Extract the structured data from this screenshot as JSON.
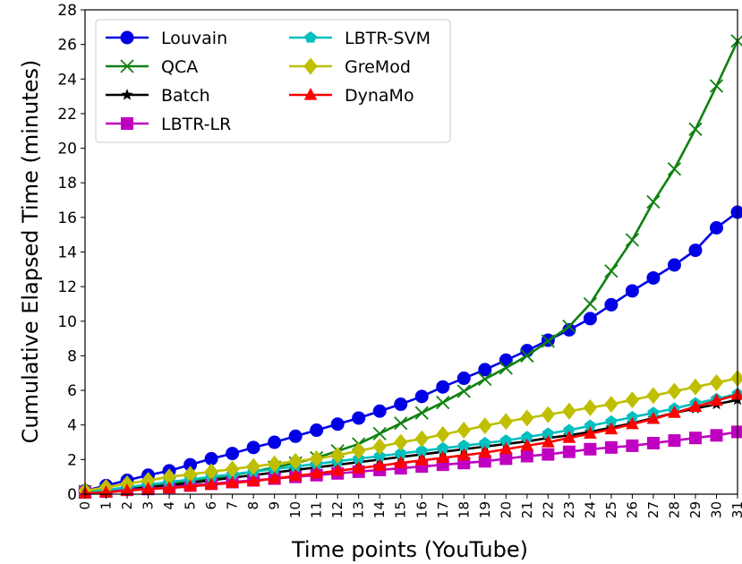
{
  "chart_data": {
    "type": "line",
    "title": "",
    "xlabel": "Time points (YouTube)",
    "ylabel": "Cumulative Elapsed Time (minutes)",
    "xlim": [
      0,
      31
    ],
    "ylim": [
      0,
      28
    ],
    "x_ticks": [
      0,
      1,
      2,
      3,
      4,
      5,
      6,
      7,
      8,
      9,
      10,
      11,
      12,
      13,
      14,
      15,
      16,
      17,
      18,
      19,
      20,
      21,
      22,
      23,
      24,
      25,
      26,
      27,
      28,
      29,
      30,
      31
    ],
    "y_ticks": [
      0,
      2,
      4,
      6,
      8,
      10,
      12,
      14,
      16,
      18,
      20,
      22,
      24,
      26,
      28
    ],
    "grid": false,
    "legend_position": "top-left",
    "x": [
      0,
      1,
      2,
      3,
      4,
      5,
      6,
      7,
      8,
      9,
      10,
      11,
      12,
      13,
      14,
      15,
      16,
      17,
      18,
      19,
      20,
      21,
      22,
      23,
      24,
      25,
      26,
      27,
      28,
      29,
      30,
      31
    ],
    "series": [
      {
        "name": "Louvain",
        "color": "#0000e6",
        "marker": "circle",
        "values": [
          0.2,
          0.5,
          0.8,
          1.1,
          1.35,
          1.7,
          2.05,
          2.35,
          2.7,
          3.0,
          3.35,
          3.7,
          4.05,
          4.4,
          4.8,
          5.2,
          5.65,
          6.2,
          6.7,
          7.2,
          7.75,
          8.3,
          8.9,
          9.5,
          10.15,
          10.95,
          11.75,
          12.5,
          13.25,
          14.1,
          15.4,
          16.3
        ]
      },
      {
        "name": "QCA",
        "color": "#108010",
        "marker": "x",
        "values": [
          0.15,
          0.2,
          0.3,
          0.45,
          0.6,
          0.75,
          0.9,
          1.1,
          1.3,
          1.55,
          1.8,
          2.1,
          2.5,
          2.9,
          3.5,
          4.1,
          4.7,
          5.3,
          5.95,
          6.65,
          7.3,
          8.0,
          8.85,
          9.7,
          11.0,
          12.9,
          14.7,
          16.9,
          18.8,
          21.1,
          23.6,
          26.2
        ]
      },
      {
        "name": "Batch",
        "color": "#000000",
        "marker": "star",
        "values": [
          0.1,
          0.2,
          0.3,
          0.4,
          0.5,
          0.65,
          0.8,
          0.95,
          1.1,
          1.25,
          1.4,
          1.55,
          1.7,
          1.85,
          2.0,
          2.15,
          2.3,
          2.45,
          2.6,
          2.75,
          2.9,
          3.05,
          3.25,
          3.4,
          3.6,
          3.85,
          4.1,
          4.4,
          4.7,
          4.95,
          5.2,
          5.45
        ]
      },
      {
        "name": "LBTR-LR",
        "color": "#c000c0",
        "marker": "square",
        "values": [
          0.1,
          0.15,
          0.25,
          0.3,
          0.4,
          0.5,
          0.6,
          0.7,
          0.8,
          0.9,
          1.0,
          1.1,
          1.2,
          1.3,
          1.4,
          1.5,
          1.6,
          1.7,
          1.8,
          1.9,
          2.05,
          2.2,
          2.3,
          2.45,
          2.6,
          2.7,
          2.8,
          2.95,
          3.1,
          3.25,
          3.4,
          3.6
        ]
      },
      {
        "name": "LBTR-SVM",
        "color": "#00bfbf",
        "marker": "pentagon",
        "values": [
          0.15,
          0.25,
          0.4,
          0.55,
          0.7,
          0.85,
          1.0,
          1.15,
          1.3,
          1.45,
          1.6,
          1.75,
          1.9,
          2.05,
          2.2,
          2.35,
          2.5,
          2.65,
          2.8,
          2.95,
          3.1,
          3.3,
          3.5,
          3.7,
          3.95,
          4.2,
          4.45,
          4.7,
          4.95,
          5.25,
          5.5,
          5.8
        ]
      },
      {
        "name": "GreMod",
        "color": "#bfbf00",
        "marker": "diamond",
        "values": [
          0.2,
          0.4,
          0.6,
          0.8,
          1.0,
          1.15,
          1.3,
          1.45,
          1.6,
          1.75,
          1.9,
          2.05,
          2.25,
          2.5,
          2.75,
          3.0,
          3.2,
          3.45,
          3.7,
          3.95,
          4.2,
          4.4,
          4.6,
          4.8,
          5.0,
          5.2,
          5.45,
          5.7,
          5.95,
          6.2,
          6.45,
          6.7
        ]
      },
      {
        "name": "DynaMo",
        "color": "#ff0000",
        "marker": "triangle",
        "values": [
          0.05,
          0.1,
          0.2,
          0.3,
          0.35,
          0.45,
          0.55,
          0.65,
          0.75,
          0.9,
          1.05,
          1.2,
          1.35,
          1.5,
          1.65,
          1.8,
          1.95,
          2.1,
          2.25,
          2.4,
          2.6,
          2.8,
          3.0,
          3.25,
          3.5,
          3.75,
          4.05,
          4.35,
          4.7,
          5.05,
          5.4,
          5.75
        ]
      }
    ]
  }
}
